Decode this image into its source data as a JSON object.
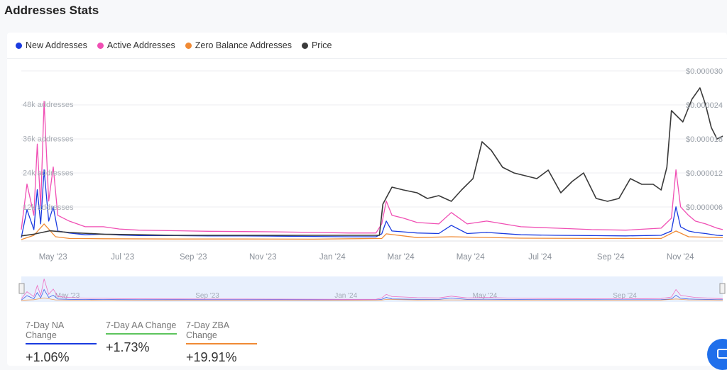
{
  "page_title": "Addresses Stats",
  "colors": {
    "new": "#1a3be0",
    "active": "#f04fb4",
    "zero": "#f08a34",
    "price": "#3a3a3a",
    "nav_bg": "#e8f0fd"
  },
  "legend": [
    {
      "label": "New Addresses",
      "color": "#1a3be0"
    },
    {
      "label": "Active Addresses",
      "color": "#f04fb4"
    },
    {
      "label": "Zero Balance Addresses",
      "color": "#f08a34"
    },
    {
      "label": "Price",
      "color": "#3a3a3a"
    }
  ],
  "stats": [
    {
      "label": "7-Day NA Change",
      "value": "+1.06%",
      "color": "#1a3be0"
    },
    {
      "label": "7-Day AA Change",
      "value": "+1.73%",
      "color": "#5cc45c"
    },
    {
      "label": "7-Day ZBA Change",
      "value": "+19.91%",
      "color": "#f08a34"
    }
  ],
  "chart_data": {
    "type": "line",
    "title": "Addresses Stats",
    "x_ticks": [
      "May '23",
      "Jul '23",
      "Sep '23",
      "Nov '23",
      "Jan '24",
      "Mar '24",
      "May '24",
      "Jul '24",
      "Sep '24",
      "Nov '24"
    ],
    "nav_ticks": [
      "May '23",
      "Sep '23",
      "Jan '24",
      "May '24",
      "Sep '24"
    ],
    "x_range": [
      "2023-04-20",
      "2024-12-25"
    ],
    "y_left": {
      "min": 0,
      "max": 48000,
      "ticks": [
        "12k addresses",
        "24k addresses",
        "36k addresses",
        "48k addresses"
      ],
      "tick_values": [
        12000,
        24000,
        36000,
        48000
      ]
    },
    "y_right": {
      "min": 0,
      "max": 3e-05,
      "ticks": [
        "$0.000006",
        "$0.000012",
        "$0.000018",
        "$0.000024",
        "$0.000030"
      ],
      "tick_values": [
        6e-06,
        1.2e-05,
        1.8e-05,
        2.4e-05,
        3e-05
      ]
    },
    "grid": true,
    "legend_position": "top-left",
    "series": [
      {
        "name": "New Addresses",
        "axis": "left",
        "x": [
          "2023-04-20",
          "2023-04-25",
          "2023-05-01",
          "2023-05-04",
          "2023-05-07",
          "2023-05-10",
          "2023-05-14",
          "2023-05-18",
          "2023-05-22",
          "2023-06-01",
          "2023-06-15",
          "2023-07-01",
          "2023-07-15",
          "2023-08-01",
          "2023-09-01",
          "2023-10-01",
          "2023-11-01",
          "2023-12-01",
          "2024-01-01",
          "2024-02-01",
          "2024-02-25",
          "2024-03-01",
          "2024-03-05",
          "2024-03-10",
          "2024-03-20",
          "2024-04-01",
          "2024-04-20",
          "2024-05-01",
          "2024-05-15",
          "2024-06-01",
          "2024-07-01",
          "2024-08-01",
          "2024-09-01",
          "2024-10-01",
          "2024-11-01",
          "2024-11-10",
          "2024-11-14",
          "2024-11-18",
          "2024-11-25",
          "2024-12-01",
          "2024-12-10",
          "2024-12-20",
          "2024-12-25"
        ],
        "y": [
          1200,
          11000,
          4000,
          18000,
          6000,
          25000,
          7000,
          12000,
          3500,
          2800,
          2200,
          2400,
          2100,
          1900,
          1900,
          1800,
          1800,
          1700,
          1600,
          1500,
          1500,
          2500,
          7000,
          3500,
          3200,
          2800,
          2600,
          5500,
          2600,
          3000,
          2200,
          2000,
          1900,
          1800,
          2000,
          3500,
          12000,
          5000,
          3500,
          3000,
          2600,
          2000,
          1900
        ]
      },
      {
        "name": "Active Addresses",
        "axis": "left",
        "x": [
          "2023-04-20",
          "2023-04-25",
          "2023-05-01",
          "2023-05-04",
          "2023-05-07",
          "2023-05-10",
          "2023-05-14",
          "2023-05-18",
          "2023-05-22",
          "2023-06-01",
          "2023-06-15",
          "2023-07-01",
          "2023-07-15",
          "2023-08-01",
          "2023-09-01",
          "2023-10-01",
          "2023-11-01",
          "2023-12-01",
          "2024-01-01",
          "2024-02-01",
          "2024-02-25",
          "2024-03-01",
          "2024-03-05",
          "2024-03-10",
          "2024-03-20",
          "2024-04-01",
          "2024-04-20",
          "2024-05-01",
          "2024-05-15",
          "2024-06-01",
          "2024-07-01",
          "2024-08-01",
          "2024-09-01",
          "2024-10-01",
          "2024-11-01",
          "2024-11-10",
          "2024-11-14",
          "2024-11-18",
          "2024-11-25",
          "2024-12-01",
          "2024-12-10",
          "2024-12-20",
          "2024-12-25"
        ],
        "y": [
          4000,
          20000,
          9000,
          34000,
          12000,
          49000,
          14000,
          26000,
          9000,
          7000,
          5000,
          5000,
          4200,
          3800,
          3600,
          3400,
          3300,
          3200,
          3000,
          2800,
          2800,
          6000,
          14000,
          9000,
          8000,
          6500,
          6000,
          10000,
          6000,
          7000,
          5000,
          4500,
          4000,
          3800,
          4500,
          8000,
          25000,
          12000,
          9000,
          7000,
          6000,
          4500,
          4000
        ]
      },
      {
        "name": "Zero Balance Addresses",
        "axis": "left",
        "x": [
          "2023-04-20",
          "2023-05-01",
          "2023-05-10",
          "2023-05-20",
          "2023-06-01",
          "2023-07-01",
          "2023-09-01",
          "2023-11-01",
          "2024-01-01",
          "2024-03-01",
          "2024-03-05",
          "2024-04-01",
          "2024-05-01",
          "2024-07-01",
          "2024-09-01",
          "2024-11-01",
          "2024-11-14",
          "2024-11-25",
          "2024-12-25"
        ],
        "y": [
          500,
          2000,
          6000,
          1500,
          900,
          800,
          700,
          700,
          650,
          900,
          2500,
          1200,
          1500,
          1000,
          900,
          900,
          3500,
          1500,
          1200
        ]
      },
      {
        "name": "Price",
        "axis": "right",
        "x": [
          "2023-04-20",
          "2023-05-01",
          "2023-05-15",
          "2023-06-01",
          "2023-07-01",
          "2023-08-01",
          "2023-09-01",
          "2023-10-01",
          "2023-11-01",
          "2023-12-01",
          "2024-01-01",
          "2024-02-01",
          "2024-02-28",
          "2024-03-02",
          "2024-03-10",
          "2024-03-20",
          "2024-04-01",
          "2024-04-10",
          "2024-04-20",
          "2024-05-01",
          "2024-05-10",
          "2024-05-20",
          "2024-05-28",
          "2024-06-05",
          "2024-06-15",
          "2024-06-25",
          "2024-07-05",
          "2024-07-15",
          "2024-07-25",
          "2024-08-05",
          "2024-08-15",
          "2024-08-25",
          "2024-09-05",
          "2024-09-15",
          "2024-09-25",
          "2024-10-05",
          "2024-10-15",
          "2024-10-25",
          "2024-11-01",
          "2024-11-06",
          "2024-11-10",
          "2024-11-15",
          "2024-11-20",
          "2024-11-28",
          "2024-12-05",
          "2024-12-10",
          "2024-12-15",
          "2024-12-20",
          "2024-12-25"
        ],
        "y": [
          9e-07,
          1.2e-06,
          1.8e-06,
          1.5e-06,
          1.2e-06,
          1.1e-06,
          1e-06,
          1e-06,
          1e-06,
          1e-06,
          1e-06,
          1e-06,
          1e-06,
          6.5e-06,
          9.5e-06,
          9e-06,
          8.5e-06,
          7.5e-06,
          8e-06,
          7e-06,
          9e-06,
          1.1e-05,
          1.75e-05,
          1.6e-05,
          1.3e-05,
          1.2e-05,
          1.15e-05,
          1.1e-05,
          1.25e-05,
          8.5e-06,
          1.05e-05,
          1.2e-05,
          7.5e-06,
          7e-06,
          7.5e-06,
          1.1e-05,
          1e-05,
          1e-05,
          9e-06,
          1.3e-05,
          2.3e-05,
          2.2e-05,
          2.1e-05,
          2.5e-05,
          2.7e-05,
          2.4e-05,
          2e-05,
          1.8e-05,
          1.85e-05
        ]
      }
    ]
  }
}
